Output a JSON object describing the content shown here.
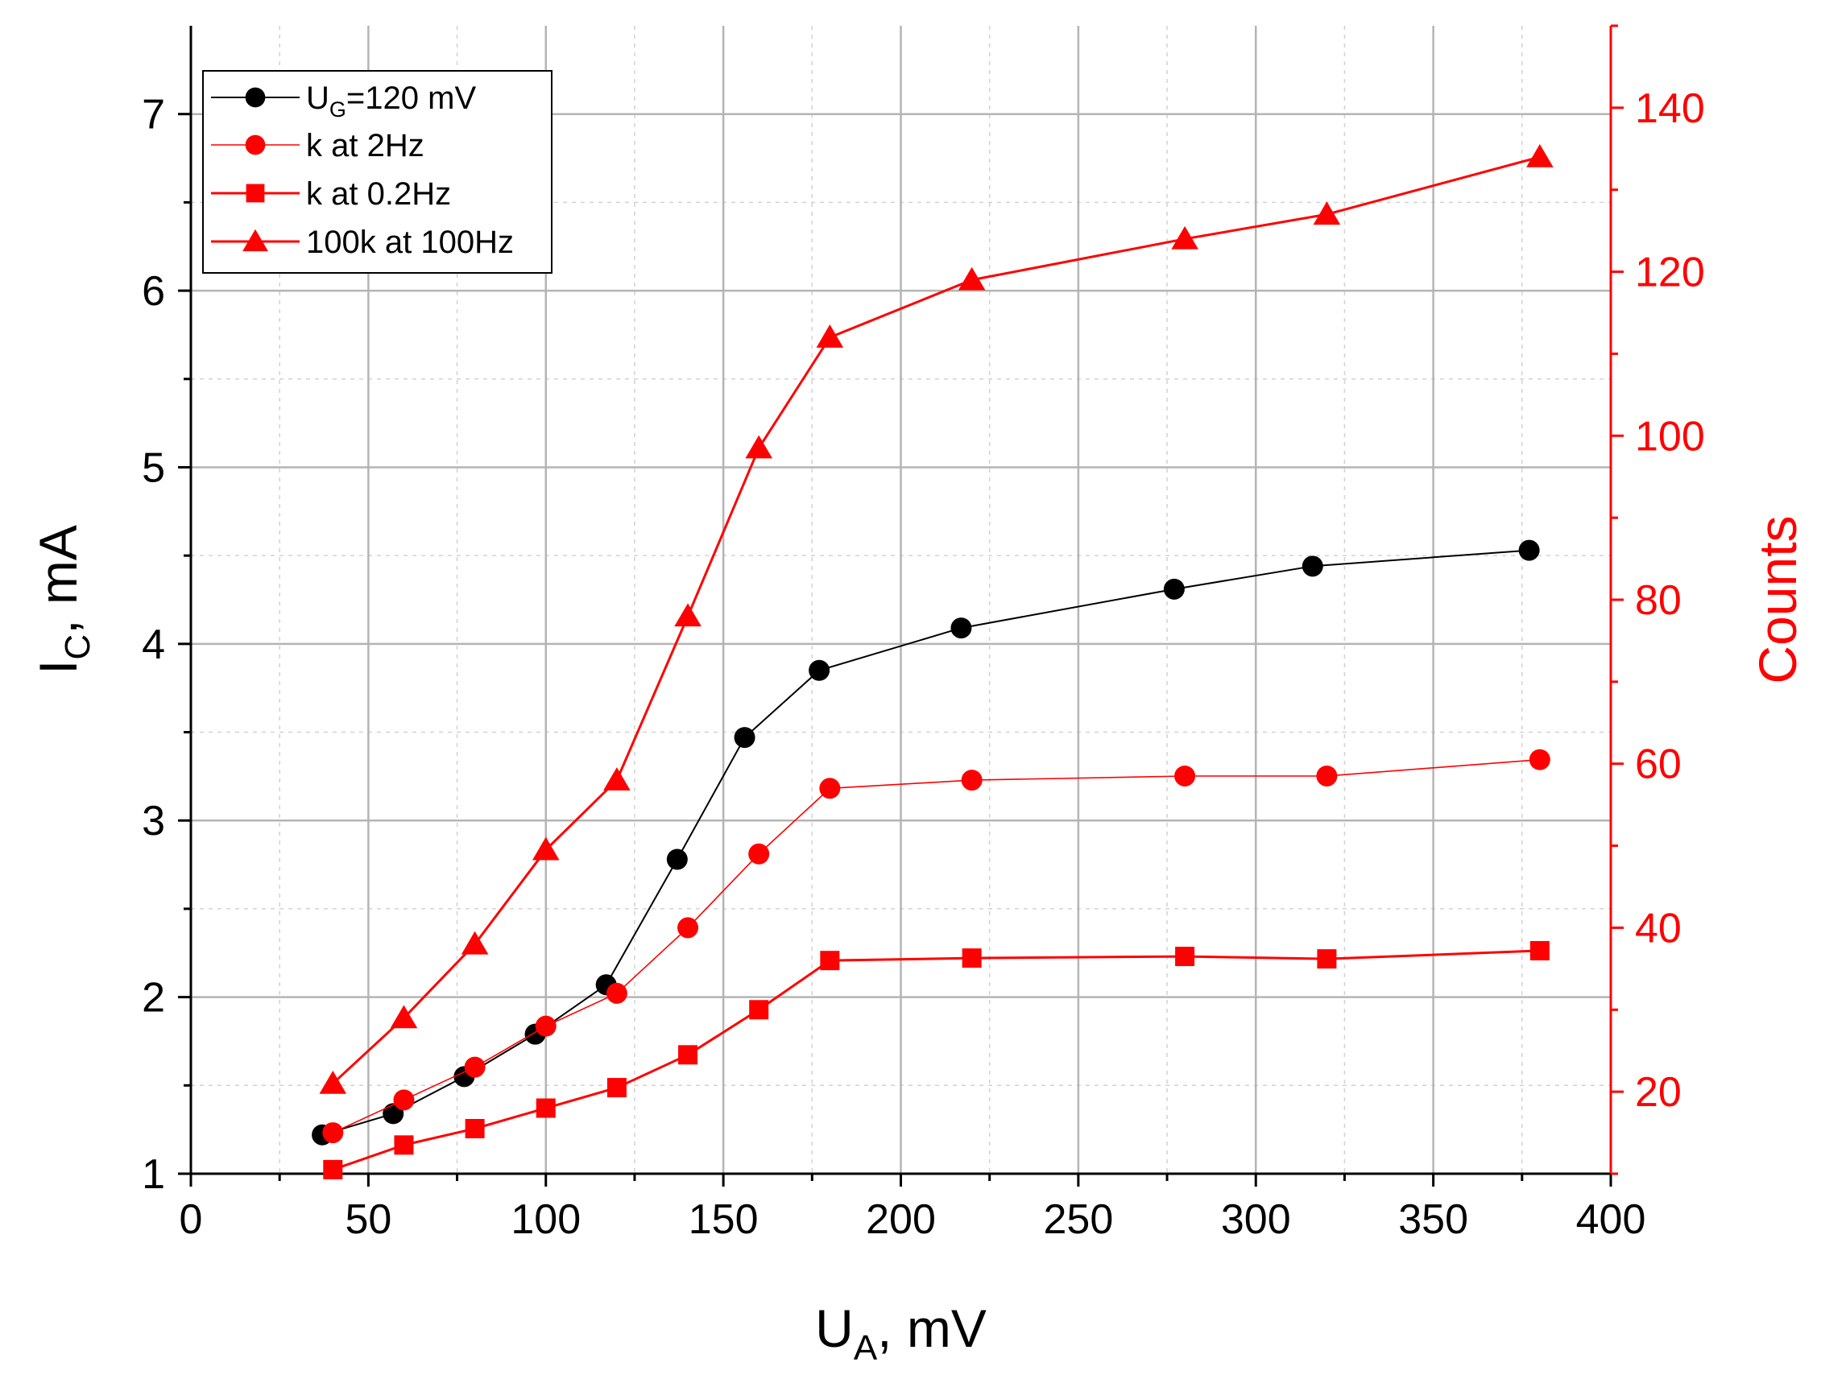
{
  "chart_data": {
    "type": "line",
    "title": "",
    "xlabel": {
      "main": "U",
      "sub": "A",
      "rest": ", mV"
    },
    "ylabel_left": {
      "main": "I",
      "sub": "C",
      "rest": ", mA"
    },
    "ylabel_right": "Counts",
    "xlim": [
      0,
      400
    ],
    "ylim_left": [
      1,
      7.5
    ],
    "ylim_right": [
      10,
      150
    ],
    "x_ticks": [
      "0",
      "50",
      "100",
      "150",
      "200",
      "250",
      "300",
      "350",
      "400"
    ],
    "y_left_ticks": [
      "1",
      "2",
      "3",
      "4",
      "5",
      "6",
      "7"
    ],
    "y_right_ticks": [
      "20",
      "40",
      "60",
      "80",
      "100",
      "120",
      "140"
    ],
    "grid": true,
    "legend_position": "top-left",
    "colors": {
      "black": "#000000",
      "red": "#ff0000",
      "grid_major": "#b4b4b4",
      "grid_minor": "#d2d2d2"
    },
    "series": [
      {
        "name": "U_G=120 mV",
        "legend": {
          "main": "U",
          "sub": "G",
          "rest": "=120 mV"
        },
        "axis": "left",
        "marker": "circle",
        "color": "#000000",
        "x": [
          37,
          57,
          77,
          97,
          117,
          137,
          156,
          177,
          217,
          277,
          316,
          377
        ],
        "values": [
          1.22,
          1.34,
          1.55,
          1.79,
          2.07,
          2.78,
          3.47,
          3.85,
          4.09,
          4.31,
          4.44,
          4.53
        ]
      },
      {
        "name": "k at 2Hz",
        "legend": {
          "main": "k at 2Hz",
          "sub": "",
          "rest": ""
        },
        "axis": "right",
        "marker": "circle",
        "color": "#ff0000",
        "x": [
          40,
          60,
          80,
          100,
          120,
          140,
          160,
          180,
          220,
          280,
          320,
          380
        ],
        "values": [
          15,
          19,
          23,
          28,
          32,
          40,
          49,
          57,
          58,
          58.5,
          58.5,
          60.5
        ]
      },
      {
        "name": "k at 0.2Hz",
        "legend": {
          "main": "k at 0.2Hz",
          "sub": "",
          "rest": ""
        },
        "axis": "right",
        "marker": "square",
        "color": "#ff0000",
        "x": [
          40,
          60,
          80,
          100,
          120,
          140,
          160,
          180,
          220,
          280,
          320,
          380
        ],
        "values": [
          10.5,
          13.5,
          15.5,
          18,
          20.5,
          24.5,
          30,
          36,
          36.3,
          36.5,
          36.2,
          37.2
        ]
      },
      {
        "name": "100k at 100Hz",
        "legend": {
          "main": "100k at 100Hz",
          "sub": "",
          "rest": ""
        },
        "axis": "right",
        "marker": "triangle",
        "color": "#ff0000",
        "x": [
          40,
          60,
          80,
          100,
          120,
          140,
          160,
          180,
          220,
          280,
          320,
          380
        ],
        "values": [
          21,
          29,
          38,
          49.5,
          58,
          78,
          98.5,
          112,
          119,
          124,
          127,
          134
        ]
      }
    ]
  }
}
